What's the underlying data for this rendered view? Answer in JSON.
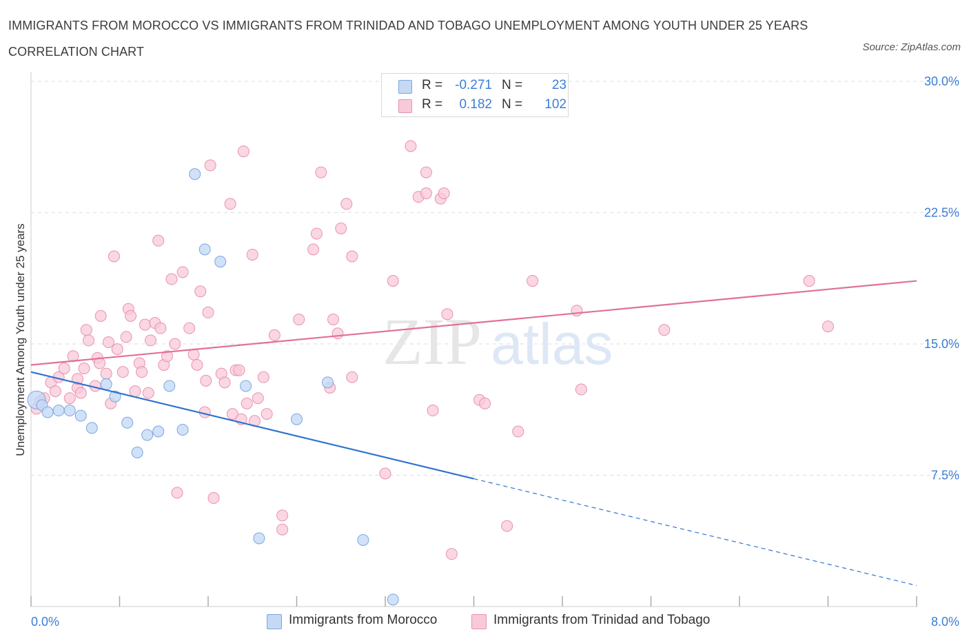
{
  "header": {
    "title": "IMMIGRANTS FROM MOROCCO VS IMMIGRANTS FROM TRINIDAD AND TOBAGO UNEMPLOYMENT AMONG YOUTH UNDER 25 YEARS CORRELATION CHART",
    "source": "Source: ZipAtlas.com"
  },
  "watermark": {
    "zip": "ZIP",
    "atlas": "atlas"
  },
  "legend": {
    "r_label": "R =",
    "n_label": "N =",
    "rows": [
      {
        "r": "-0.271",
        "n": "23"
      },
      {
        "r": "0.182",
        "n": "102"
      }
    ]
  },
  "colors": {
    "morocco_fill": "#c5d9f5",
    "morocco_stroke": "#7aa6e0",
    "morocco_line": "#2f73d0",
    "trinidad_fill": "#f8c9d8",
    "trinidad_stroke": "#e892ae",
    "trinidad_line": "#e07098",
    "axis_value": "#3b7dd8",
    "grid": "#dddddd"
  },
  "chart_data": {
    "type": "scatter",
    "title": "IMMIGRANTS FROM MOROCCO VS IMMIGRANTS FROM TRINIDAD AND TOBAGO UNEMPLOYMENT AMONG YOUTH UNDER 25 YEARS CORRELATION CHART",
    "xlabel": "",
    "ylabel": "Unemployment Among Youth under 25 years",
    "xlim": [
      0,
      8
    ],
    "ylim": [
      0,
      30
    ],
    "x_tick_labels": [
      "0.0%",
      "8.0%"
    ],
    "y_ticks": [
      7.5,
      15,
      22.5,
      30
    ],
    "y_tick_labels": [
      "7.5%",
      "15.0%",
      "22.5%",
      "30.0%"
    ],
    "grid": "horizontal dashed",
    "legend_position": "top-center",
    "series": [
      {
        "name": "Immigrants from Morocco",
        "trend": {
          "x0": 0,
          "y0": 13.4,
          "x1": 4.0,
          "y1": 7.3,
          "dashed_to_x": 8.0,
          "dashed_to_y": 1.2
        },
        "points": [
          {
            "x": 0.05,
            "y": 11.8,
            "big": true
          },
          {
            "x": 0.1,
            "y": 11.5
          },
          {
            "x": 0.15,
            "y": 11.1
          },
          {
            "x": 0.25,
            "y": 11.2
          },
          {
            "x": 0.35,
            "y": 11.2
          },
          {
            "x": 0.45,
            "y": 10.9
          },
          {
            "x": 0.55,
            "y": 10.2
          },
          {
            "x": 0.68,
            "y": 12.7
          },
          {
            "x": 0.76,
            "y": 12.0
          },
          {
            "x": 0.87,
            "y": 10.5
          },
          {
            "x": 0.96,
            "y": 8.8
          },
          {
            "x": 1.05,
            "y": 9.8
          },
          {
            "x": 1.15,
            "y": 10.0
          },
          {
            "x": 1.25,
            "y": 12.6
          },
          {
            "x": 1.37,
            "y": 10.1
          },
          {
            "x": 1.48,
            "y": 24.7
          },
          {
            "x": 1.57,
            "y": 20.4
          },
          {
            "x": 1.71,
            "y": 19.7
          },
          {
            "x": 1.94,
            "y": 12.6
          },
          {
            "x": 2.06,
            "y": 3.9
          },
          {
            "x": 2.4,
            "y": 10.7
          },
          {
            "x": 2.68,
            "y": 12.8
          },
          {
            "x": 3.0,
            "y": 3.8
          },
          {
            "x": 3.27,
            "y": 0.4
          }
        ]
      },
      {
        "name": "Immigrants from Trinidad and Tobago",
        "trend": {
          "x0": 0,
          "y0": 13.8,
          "x1": 8.0,
          "y1": 18.6
        },
        "points": [
          {
            "x": 0.05,
            "y": 11.3
          },
          {
            "x": 0.08,
            "y": 11.7
          },
          {
            "x": 0.12,
            "y": 11.9
          },
          {
            "x": 0.18,
            "y": 12.8
          },
          {
            "x": 0.22,
            "y": 12.3
          },
          {
            "x": 0.25,
            "y": 13.1
          },
          {
            "x": 0.3,
            "y": 13.6
          },
          {
            "x": 0.35,
            "y": 11.9
          },
          {
            "x": 0.38,
            "y": 14.3
          },
          {
            "x": 0.42,
            "y": 12.5
          },
          {
            "x": 0.45,
            "y": 12.2
          },
          {
            "x": 0.42,
            "y": 13.0
          },
          {
            "x": 0.48,
            "y": 13.6
          },
          {
            "x": 0.5,
            "y": 15.8
          },
          {
            "x": 0.52,
            "y": 15.2
          },
          {
            "x": 0.58,
            "y": 12.6
          },
          {
            "x": 0.6,
            "y": 14.2
          },
          {
            "x": 0.62,
            "y": 13.9
          },
          {
            "x": 0.63,
            "y": 16.6
          },
          {
            "x": 0.68,
            "y": 13.3
          },
          {
            "x": 0.7,
            "y": 15.1
          },
          {
            "x": 0.72,
            "y": 11.6
          },
          {
            "x": 0.75,
            "y": 20.0
          },
          {
            "x": 0.78,
            "y": 14.7
          },
          {
            "x": 0.83,
            "y": 13.4
          },
          {
            "x": 0.86,
            "y": 15.4
          },
          {
            "x": 0.88,
            "y": 17.0
          },
          {
            "x": 0.9,
            "y": 16.6
          },
          {
            "x": 0.94,
            "y": 12.3
          },
          {
            "x": 0.98,
            "y": 13.9
          },
          {
            "x": 1.0,
            "y": 13.4
          },
          {
            "x": 1.03,
            "y": 16.1
          },
          {
            "x": 1.06,
            "y": 12.2
          },
          {
            "x": 1.08,
            "y": 15.2
          },
          {
            "x": 1.12,
            "y": 16.2
          },
          {
            "x": 1.15,
            "y": 20.9
          },
          {
            "x": 1.17,
            "y": 15.9
          },
          {
            "x": 1.2,
            "y": 13.8
          },
          {
            "x": 1.23,
            "y": 14.3
          },
          {
            "x": 1.27,
            "y": 18.7
          },
          {
            "x": 1.3,
            "y": 15.0
          },
          {
            "x": 1.32,
            "y": 6.5
          },
          {
            "x": 1.37,
            "y": 19.1
          },
          {
            "x": 1.43,
            "y": 15.9
          },
          {
            "x": 1.47,
            "y": 14.4
          },
          {
            "x": 1.5,
            "y": 13.8
          },
          {
            "x": 1.53,
            "y": 18.0
          },
          {
            "x": 1.57,
            "y": 11.1
          },
          {
            "x": 1.58,
            "y": 12.9
          },
          {
            "x": 1.6,
            "y": 16.8
          },
          {
            "x": 1.62,
            "y": 25.2
          },
          {
            "x": 1.65,
            "y": 6.2
          },
          {
            "x": 1.72,
            "y": 13.3
          },
          {
            "x": 1.75,
            "y": 12.8
          },
          {
            "x": 1.8,
            "y": 23.0
          },
          {
            "x": 1.82,
            "y": 11.0
          },
          {
            "x": 1.85,
            "y": 13.5
          },
          {
            "x": 1.88,
            "y": 13.5
          },
          {
            "x": 1.9,
            "y": 10.7
          },
          {
            "x": 1.92,
            "y": 26.0
          },
          {
            "x": 1.95,
            "y": 11.6
          },
          {
            "x": 2.0,
            "y": 20.1
          },
          {
            "x": 2.02,
            "y": 10.6
          },
          {
            "x": 2.05,
            "y": 11.9
          },
          {
            "x": 2.1,
            "y": 13.1
          },
          {
            "x": 2.13,
            "y": 11.0
          },
          {
            "x": 2.2,
            "y": 15.5
          },
          {
            "x": 2.27,
            "y": 5.2
          },
          {
            "x": 2.27,
            "y": 4.4
          },
          {
            "x": 2.42,
            "y": 16.4
          },
          {
            "x": 2.55,
            "y": 20.4
          },
          {
            "x": 2.58,
            "y": 21.3
          },
          {
            "x": 2.62,
            "y": 24.8
          },
          {
            "x": 2.7,
            "y": 12.5
          },
          {
            "x": 2.73,
            "y": 16.4
          },
          {
            "x": 2.77,
            "y": 15.6
          },
          {
            "x": 2.8,
            "y": 21.6
          },
          {
            "x": 2.85,
            "y": 23.0
          },
          {
            "x": 2.9,
            "y": 20.0
          },
          {
            "x": 2.9,
            "y": 13.1
          },
          {
            "x": 3.2,
            "y": 7.6
          },
          {
            "x": 3.27,
            "y": 18.6
          },
          {
            "x": 3.43,
            "y": 26.3
          },
          {
            "x": 3.5,
            "y": 23.4
          },
          {
            "x": 3.57,
            "y": 24.8
          },
          {
            "x": 3.57,
            "y": 23.6
          },
          {
            "x": 3.63,
            "y": 11.2
          },
          {
            "x": 3.7,
            "y": 23.3
          },
          {
            "x": 3.73,
            "y": 23.6
          },
          {
            "x": 3.76,
            "y": 16.7
          },
          {
            "x": 3.8,
            "y": 3.0
          },
          {
            "x": 4.05,
            "y": 11.8
          },
          {
            "x": 4.1,
            "y": 11.6
          },
          {
            "x": 4.3,
            "y": 4.6
          },
          {
            "x": 4.4,
            "y": 10.0
          },
          {
            "x": 4.53,
            "y": 18.6
          },
          {
            "x": 4.93,
            "y": 16.9
          },
          {
            "x": 4.97,
            "y": 12.4
          },
          {
            "x": 5.72,
            "y": 15.8
          },
          {
            "x": 7.03,
            "y": 18.6
          },
          {
            "x": 7.2,
            "y": 16.0
          }
        ]
      }
    ]
  },
  "bottom_legend": {
    "items": [
      "Immigrants from Morocco",
      "Immigrants from Trinidad and Tobago"
    ]
  }
}
